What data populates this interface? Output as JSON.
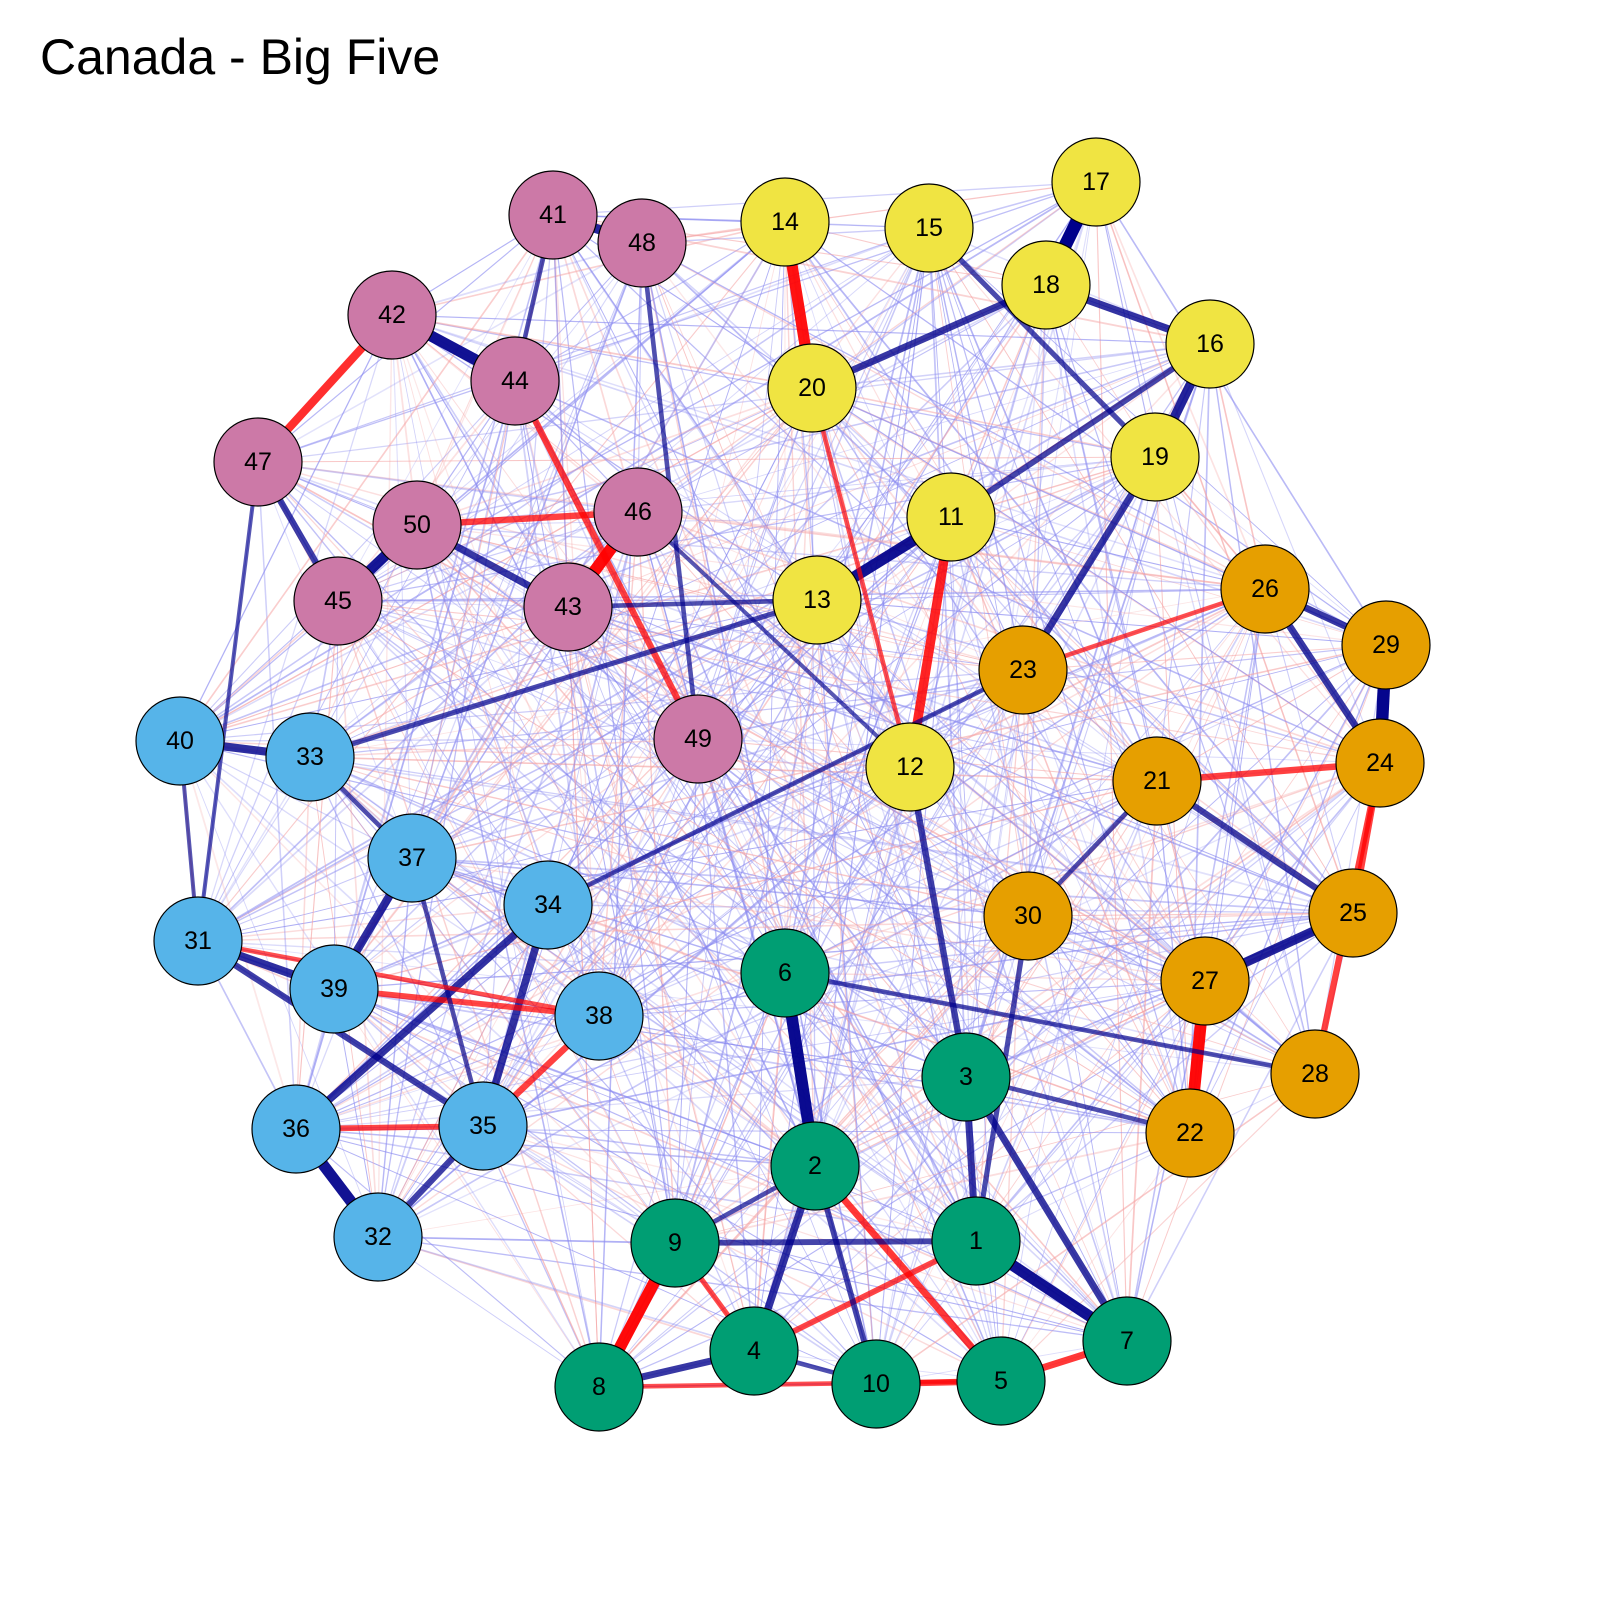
{
  "title": "Canada - Big Five",
  "colors": {
    "positive": "#00008B",
    "positive_light": "#8A8AF0",
    "negative": "#FF0000",
    "negative_light": "#F5A3A3",
    "node_stroke": "#000000"
  },
  "groups": {
    "green": {
      "color": "#009E73",
      "nodes": [
        1,
        2,
        3,
        4,
        5,
        6,
        7,
        8,
        9,
        10
      ]
    },
    "yellow": {
      "color": "#F0E442",
      "nodes": [
        11,
        12,
        13,
        14,
        15,
        16,
        17,
        18,
        19,
        20
      ]
    },
    "orange": {
      "color": "#E69F00",
      "nodes": [
        21,
        22,
        23,
        24,
        25,
        26,
        27,
        28,
        29,
        30
      ]
    },
    "blue": {
      "color": "#56B4E9",
      "nodes": [
        31,
        32,
        33,
        34,
        35,
        36,
        37,
        38,
        39,
        40
      ]
    },
    "pink": {
      "color": "#CC79A7",
      "nodes": [
        41,
        42,
        43,
        44,
        45,
        46,
        47,
        48,
        49,
        50
      ]
    }
  },
  "node_labels": [
    "1",
    "2",
    "3",
    "4",
    "5",
    "6",
    "7",
    "8",
    "9",
    "10",
    "11",
    "12",
    "13",
    "14",
    "15",
    "16",
    "17",
    "18",
    "19",
    "20",
    "21",
    "22",
    "23",
    "24",
    "25",
    "26",
    "27",
    "28",
    "29",
    "30",
    "31",
    "32",
    "33",
    "34",
    "35",
    "36",
    "37",
    "38",
    "39",
    "40",
    "41",
    "42",
    "43",
    "44",
    "45",
    "46",
    "47",
    "48",
    "49",
    "50"
  ],
  "strong_edges": [
    {
      "from": 17,
      "to": 18,
      "sign": "+",
      "weight": 1.0
    },
    {
      "from": 14,
      "to": 20,
      "sign": "-",
      "weight": 0.85
    },
    {
      "from": 42,
      "to": 44,
      "sign": "+",
      "weight": 0.85
    },
    {
      "from": 13,
      "to": 11,
      "sign": "+",
      "weight": 0.85
    },
    {
      "from": 43,
      "to": 46,
      "sign": "-",
      "weight": 0.9
    },
    {
      "from": 45,
      "to": 50,
      "sign": "+",
      "weight": 0.8
    },
    {
      "from": 29,
      "to": 24,
      "sign": "+",
      "weight": 0.95
    },
    {
      "from": 36,
      "to": 32,
      "sign": "+",
      "weight": 0.85
    },
    {
      "from": 6,
      "to": 2,
      "sign": "+",
      "weight": 0.9
    },
    {
      "from": 27,
      "to": 22,
      "sign": "-",
      "weight": 0.9
    },
    {
      "from": 8,
      "to": 9,
      "sign": "-",
      "weight": 0.9
    },
    {
      "from": 1,
      "to": 7,
      "sign": "+",
      "weight": 0.85
    },
    {
      "from": 41,
      "to": 48,
      "sign": "+",
      "weight": 0.7
    },
    {
      "from": 11,
      "to": 12,
      "sign": "-",
      "weight": 0.7
    },
    {
      "from": 19,
      "to": 16,
      "sign": "+",
      "weight": 0.7
    },
    {
      "from": 27,
      "to": 25,
      "sign": "+",
      "weight": 0.7
    },
    {
      "from": 40,
      "to": 33,
      "sign": "+",
      "weight": 0.6
    },
    {
      "from": 37,
      "to": 39,
      "sign": "+",
      "weight": 0.6
    },
    {
      "from": 31,
      "to": 39,
      "sign": "+",
      "weight": 0.6
    },
    {
      "from": 34,
      "to": 36,
      "sign": "+",
      "weight": 0.55
    },
    {
      "from": 34,
      "to": 35,
      "sign": "+",
      "weight": 0.55
    },
    {
      "from": 42,
      "to": 47,
      "sign": "-",
      "weight": 0.6
    },
    {
      "from": 18,
      "to": 16,
      "sign": "+",
      "weight": 0.55
    },
    {
      "from": 20,
      "to": 18,
      "sign": "+",
      "weight": 0.5
    },
    {
      "from": 26,
      "to": 24,
      "sign": "+",
      "weight": 0.5
    },
    {
      "from": 26,
      "to": 29,
      "sign": "+",
      "weight": 0.5
    },
    {
      "from": 25,
      "to": 24,
      "sign": "-",
      "weight": 0.45
    },
    {
      "from": 28,
      "to": 24,
      "sign": "-",
      "weight": 0.45
    },
    {
      "from": 4,
      "to": 2,
      "sign": "+",
      "weight": 0.55
    },
    {
      "from": 5,
      "to": 7,
      "sign": "-",
      "weight": 0.5
    },
    {
      "from": 8,
      "to": 4,
      "sign": "+",
      "weight": 0.5
    },
    {
      "from": 2,
      "to": 5,
      "sign": "-",
      "weight": 0.5
    },
    {
      "from": 3,
      "to": 1,
      "sign": "+",
      "weight": 0.5
    },
    {
      "from": 3,
      "to": 7,
      "sign": "+",
      "weight": 0.5
    },
    {
      "from": 12,
      "to": 3,
      "sign": "+",
      "weight": 0.45
    },
    {
      "from": 23,
      "to": 19,
      "sign": "+",
      "weight": 0.5
    },
    {
      "from": 50,
      "to": 43,
      "sign": "+",
      "weight": 0.5
    },
    {
      "from": 50,
      "to": 46,
      "sign": "-",
      "weight": 0.45
    },
    {
      "from": 44,
      "to": 49,
      "sign": "-",
      "weight": 0.45
    },
    {
      "from": 47,
      "to": 45,
      "sign": "+",
      "weight": 0.45
    },
    {
      "from": 21,
      "to": 24,
      "sign": "-",
      "weight": 0.45
    },
    {
      "from": 21,
      "to": 25,
      "sign": "+",
      "weight": 0.45
    },
    {
      "from": 38,
      "to": 35,
      "sign": "-",
      "weight": 0.45
    },
    {
      "from": 35,
      "to": 32,
      "sign": "+",
      "weight": 0.45
    },
    {
      "from": 31,
      "to": 35,
      "sign": "+",
      "weight": 0.45
    },
    {
      "from": 36,
      "to": 35,
      "sign": "-",
      "weight": 0.4
    },
    {
      "from": 39,
      "to": 38,
      "sign": "-",
      "weight": 0.4
    },
    {
      "from": 9,
      "to": 1,
      "sign": "+",
      "weight": 0.4
    },
    {
      "from": 10,
      "to": 5,
      "sign": "-",
      "weight": 0.45
    },
    {
      "from": 4,
      "to": 1,
      "sign": "-",
      "weight": 0.4
    },
    {
      "from": 9,
      "to": 4,
      "sign": "-",
      "weight": 0.35
    },
    {
      "from": 2,
      "to": 10,
      "sign": "+",
      "weight": 0.4
    },
    {
      "from": 15,
      "to": 19,
      "sign": "+",
      "weight": 0.35
    },
    {
      "from": 11,
      "to": 16,
      "sign": "+",
      "weight": 0.4
    },
    {
      "from": 33,
      "to": 13,
      "sign": "+",
      "weight": 0.35
    },
    {
      "from": 34,
      "to": 23,
      "sign": "+",
      "weight": 0.3
    },
    {
      "from": 30,
      "to": 1,
      "sign": "+",
      "weight": 0.35
    },
    {
      "from": 23,
      "to": 26,
      "sign": "-",
      "weight": 0.3
    },
    {
      "from": 41,
      "to": 44,
      "sign": "+",
      "weight": 0.3
    },
    {
      "from": 43,
      "to": 13,
      "sign": "+",
      "weight": 0.3
    },
    {
      "from": 22,
      "to": 3,
      "sign": "+",
      "weight": 0.3
    },
    {
      "from": 21,
      "to": 30,
      "sign": "+",
      "weight": 0.3
    },
    {
      "from": 37,
      "to": 35,
      "sign": "+",
      "weight": 0.3
    },
    {
      "from": 33,
      "to": 37,
      "sign": "+",
      "weight": 0.3
    },
    {
      "from": 6,
      "to": 28,
      "sign": "+",
      "weight": 0.3
    },
    {
      "from": 48,
      "to": 49,
      "sign": "+",
      "weight": 0.3
    },
    {
      "from": 12,
      "to": 20,
      "sign": "-",
      "weight": 0.3
    },
    {
      "from": 31,
      "to": 38,
      "sign": "-",
      "weight": 0.3
    },
    {
      "from": 47,
      "to": 31,
      "sign": "+",
      "weight": 0.25
    },
    {
      "from": 40,
      "to": 31,
      "sign": "+",
      "weight": 0.25
    },
    {
      "from": 46,
      "to": 12,
      "sign": "+",
      "weight": 0.25
    },
    {
      "from": 2,
      "to": 9,
      "sign": "+",
      "weight": 0.3
    },
    {
      "from": 10,
      "to": 4,
      "sign": "+",
      "weight": 0.3
    },
    {
      "from": 5,
      "to": 8,
      "sign": "-",
      "weight": 0.3
    }
  ]
}
